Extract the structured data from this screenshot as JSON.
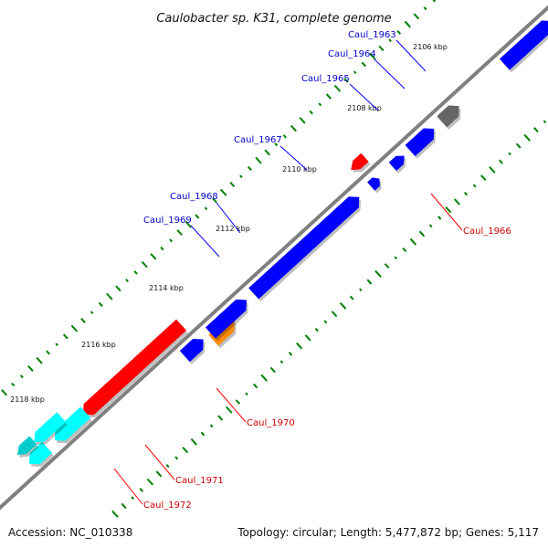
{
  "title": "Caulobacter sp. K31, complete genome",
  "footer": {
    "accession": "Accession: NC_010338",
    "summary": "Topology: circular; Length: 5,477,872 bp; Genes: 5,117"
  },
  "ticks": [
    "2106 kbp",
    "2108 kbp",
    "2110 kbp",
    "2112 kbp",
    "2114 kbp",
    "2116 kbp",
    "2118 kbp"
  ],
  "genes": [
    {
      "label": "Caul_1963",
      "strand": "+",
      "color": "#666666"
    },
    {
      "label": "Caul_1964",
      "strand": "+",
      "color": "#0000ff"
    },
    {
      "label": "Caul_1965",
      "strand": "+",
      "color": "#0000ff"
    },
    {
      "label": "Caul_1966",
      "strand": "-",
      "color": "#ff0000"
    },
    {
      "label": "Caul_1967",
      "strand": "+",
      "color": "#0000ff"
    },
    {
      "label": "Caul_1968",
      "strand": "+",
      "color": "#ff8c00"
    },
    {
      "label": "Caul_1969",
      "strand": "+",
      "color": "#0000ff"
    },
    {
      "label": "Caul_1970",
      "strand": "-",
      "color": "#ff0000"
    },
    {
      "label": "Caul_1971",
      "strand": "-",
      "color": "#00ffff"
    },
    {
      "label": "Caul_1972",
      "strand": "-",
      "color": "#00cccc"
    }
  ],
  "colors": {
    "backbone": "#808080",
    "forward_label": "#0000cc",
    "reverse_label": "#cc0000",
    "leader_forward": "#0000ff",
    "leader_reverse": "#ff0000",
    "gc_dots": "#008000"
  }
}
